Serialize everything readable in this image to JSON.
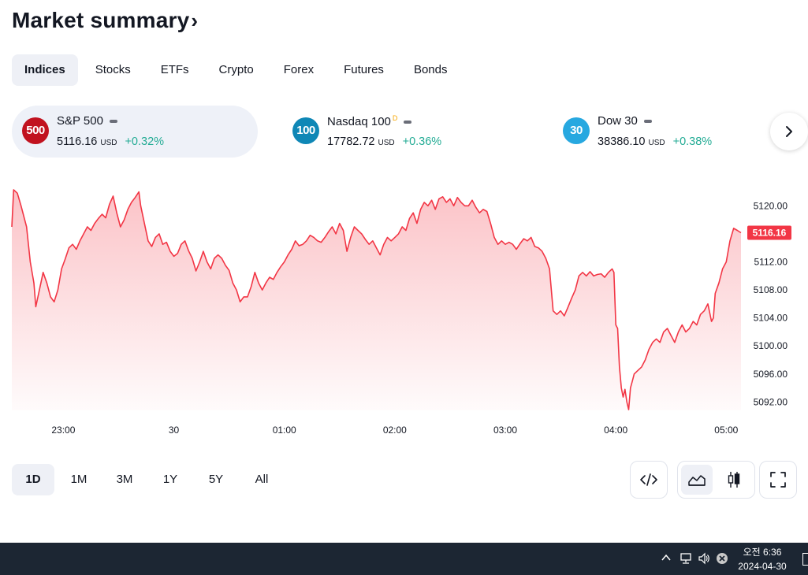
{
  "header": {
    "title": "Market summary",
    "chevron": "›"
  },
  "tabs": [
    {
      "label": "Indices",
      "active": true
    },
    {
      "label": "Stocks"
    },
    {
      "label": "ETFs"
    },
    {
      "label": "Crypto"
    },
    {
      "label": "Forex"
    },
    {
      "label": "Futures"
    },
    {
      "label": "Bonds"
    }
  ],
  "tickers": [
    {
      "badge": "500",
      "badge_color": "#c1121f",
      "name": "S&P 500",
      "flag": "",
      "value": "5116.16",
      "currency": "USD",
      "change": "+0.32%",
      "active": true
    },
    {
      "badge": "100",
      "badge_color": "#0f87b6",
      "name": "Nasdaq 100",
      "flag": "D",
      "value": "17782.72",
      "currency": "USD",
      "change": "+0.36%"
    },
    {
      "badge": "30",
      "badge_color": "#27a8e0",
      "name": "Dow 30",
      "flag": "",
      "value": "38386.10",
      "currency": "USD",
      "change": "+0.38%"
    }
  ],
  "next_icon": "chevron-right-icon",
  "chart_data": {
    "type": "area",
    "line_color": "#f23645",
    "y_ticks": [
      "5120.00",
      "5112.00",
      "5108.00",
      "5104.00",
      "5100.00",
      "5096.00",
      "5092.00"
    ],
    "y_tick_values": [
      5120,
      5112,
      5108,
      5104,
      5100,
      5096,
      5092
    ],
    "ylim": [
      5090.8,
      5122.4
    ],
    "x_ticks": [
      "23:00",
      "30",
      "01:00",
      "02:00",
      "03:00",
      "04:00",
      "05:00"
    ],
    "x_tick_values": [
      -60,
      0,
      60,
      120,
      180,
      240,
      300
    ],
    "xlim": [
      -88,
      304
    ],
    "last_value": "5116.16",
    "last_value_num": 5116.16,
    "x_unit": "minutes from 00:00 (30)",
    "points": [
      [
        -88,
        5117.0
      ],
      [
        -87,
        5122.3
      ],
      [
        -85,
        5121.8
      ],
      [
        -83,
        5120.0
      ],
      [
        -80,
        5117.0
      ],
      [
        -78,
        5112.0
      ],
      [
        -76,
        5109.0
      ],
      [
        -75,
        5105.6
      ],
      [
        -73,
        5108.0
      ],
      [
        -71,
        5110.5
      ],
      [
        -69,
        5109.0
      ],
      [
        -67,
        5107.0
      ],
      [
        -65,
        5106.3
      ],
      [
        -63,
        5108.0
      ],
      [
        -61,
        5111.0
      ],
      [
        -59,
        5112.4
      ],
      [
        -57,
        5114.0
      ],
      [
        -55,
        5114.5
      ],
      [
        -53,
        5113.8
      ],
      [
        -51,
        5115.0
      ],
      [
        -49,
        5116.0
      ],
      [
        -47,
        5117.0
      ],
      [
        -45,
        5116.5
      ],
      [
        -43,
        5117.5
      ],
      [
        -41,
        5118.2
      ],
      [
        -39,
        5118.8
      ],
      [
        -37,
        5118.3
      ],
      [
        -35,
        5120.2
      ],
      [
        -33,
        5121.4
      ],
      [
        -31,
        5119.0
      ],
      [
        -29,
        5117.0
      ],
      [
        -27,
        5118.0
      ],
      [
        -25,
        5119.5
      ],
      [
        -23,
        5120.5
      ],
      [
        -21,
        5121.2
      ],
      [
        -19,
        5122.0
      ],
      [
        -18,
        5120.0
      ],
      [
        -16,
        5117.5
      ],
      [
        -14,
        5115.0
      ],
      [
        -12,
        5114.2
      ],
      [
        -10,
        5115.5
      ],
      [
        -8,
        5116.0
      ],
      [
        -6,
        5114.5
      ],
      [
        -4,
        5114.8
      ],
      [
        -2,
        5113.5
      ],
      [
        0,
        5112.8
      ],
      [
        2,
        5113.2
      ],
      [
        4,
        5114.5
      ],
      [
        6,
        5115.0
      ],
      [
        8,
        5113.6
      ],
      [
        10,
        5112.5
      ],
      [
        12,
        5110.7
      ],
      [
        14,
        5112.0
      ],
      [
        16,
        5113.5
      ],
      [
        18,
        5112.0
      ],
      [
        20,
        5111.0
      ],
      [
        22,
        5112.5
      ],
      [
        24,
        5113.0
      ],
      [
        26,
        5112.5
      ],
      [
        28,
        5111.5
      ],
      [
        30,
        5110.8
      ],
      [
        32,
        5109.0
      ],
      [
        34,
        5108.0
      ],
      [
        36,
        5106.3
      ],
      [
        38,
        5107.0
      ],
      [
        40,
        5107.0
      ],
      [
        42,
        5108.5
      ],
      [
        44,
        5110.5
      ],
      [
        46,
        5109.0
      ],
      [
        48,
        5108.0
      ],
      [
        50,
        5109.0
      ],
      [
        52,
        5109.8
      ],
      [
        54,
        5109.5
      ],
      [
        56,
        5110.5
      ],
      [
        58,
        5111.3
      ],
      [
        60,
        5112.0
      ],
      [
        62,
        5113.0
      ],
      [
        64,
        5113.8
      ],
      [
        66,
        5115.0
      ],
      [
        68,
        5114.3
      ],
      [
        70,
        5114.5
      ],
      [
        72,
        5115.0
      ],
      [
        74,
        5115.8
      ],
      [
        76,
        5115.5
      ],
      [
        78,
        5115.0
      ],
      [
        80,
        5114.8
      ],
      [
        82,
        5115.5
      ],
      [
        84,
        5116.3
      ],
      [
        86,
        5117.0
      ],
      [
        88,
        5116.0
      ],
      [
        90,
        5117.5
      ],
      [
        92,
        5116.5
      ],
      [
        94,
        5113.5
      ],
      [
        96,
        5115.5
      ],
      [
        98,
        5117.0
      ],
      [
        100,
        5116.5
      ],
      [
        102,
        5116.0
      ],
      [
        104,
        5115.2
      ],
      [
        106,
        5114.5
      ],
      [
        108,
        5115.0
      ],
      [
        110,
        5114.0
      ],
      [
        112,
        5113.0
      ],
      [
        114,
        5114.5
      ],
      [
        116,
        5115.5
      ],
      [
        118,
        5115.0
      ],
      [
        120,
        5115.5
      ],
      [
        122,
        5116.0
      ],
      [
        124,
        5117.0
      ],
      [
        126,
        5116.5
      ],
      [
        128,
        5118.2
      ],
      [
        130,
        5119.0
      ],
      [
        132,
        5117.5
      ],
      [
        134,
        5119.5
      ],
      [
        136,
        5120.5
      ],
      [
        138,
        5120.0
      ],
      [
        140,
        5120.8
      ],
      [
        142,
        5119.5
      ],
      [
        144,
        5121.0
      ],
      [
        146,
        5121.3
      ],
      [
        148,
        5120.5
      ],
      [
        150,
        5121.0
      ],
      [
        152,
        5120.0
      ],
      [
        154,
        5121.2
      ],
      [
        156,
        5120.5
      ],
      [
        158,
        5120.0
      ],
      [
        160,
        5120.0
      ],
      [
        162,
        5120.8
      ],
      [
        164,
        5119.8
      ],
      [
        166,
        5119.0
      ],
      [
        168,
        5119.5
      ],
      [
        170,
        5119.2
      ],
      [
        172,
        5117.5
      ],
      [
        174,
        5115.5
      ],
      [
        176,
        5114.5
      ],
      [
        178,
        5115.0
      ],
      [
        180,
        5114.5
      ],
      [
        182,
        5114.8
      ],
      [
        184,
        5114.5
      ],
      [
        186,
        5113.8
      ],
      [
        188,
        5114.6
      ],
      [
        190,
        5115.3
      ],
      [
        192,
        5115.0
      ],
      [
        194,
        5115.5
      ],
      [
        196,
        5114.2
      ],
      [
        198,
        5114.0
      ],
      [
        200,
        5113.5
      ],
      [
        202,
        5112.5
      ],
      [
        204,
        5111.0
      ],
      [
        206,
        5105.0
      ],
      [
        208,
        5104.5
      ],
      [
        210,
        5105.0
      ],
      [
        212,
        5104.3
      ],
      [
        214,
        5105.5
      ],
      [
        216,
        5106.8
      ],
      [
        218,
        5108.0
      ],
      [
        220,
        5110.0
      ],
      [
        222,
        5110.5
      ],
      [
        224,
        5110.0
      ],
      [
        226,
        5110.6
      ],
      [
        228,
        5110.0
      ],
      [
        230,
        5110.2
      ],
      [
        232,
        5110.3
      ],
      [
        234,
        5109.8
      ],
      [
        236,
        5110.5
      ],
      [
        238,
        5111.0
      ],
      [
        239,
        5110.5
      ],
      [
        240,
        5103.0
      ],
      [
        241,
        5102.5
      ],
      [
        242,
        5097.0
      ],
      [
        243,
        5094.0
      ],
      [
        244,
        5092.7
      ],
      [
        245,
        5093.8
      ],
      [
        246,
        5092.0
      ],
      [
        247,
        5090.9
      ],
      [
        248,
        5094.0
      ],
      [
        249,
        5095.0
      ],
      [
        250,
        5096.0
      ],
      [
        252,
        5096.5
      ],
      [
        254,
        5097.0
      ],
      [
        256,
        5098.0
      ],
      [
        258,
        5099.5
      ],
      [
        260,
        5100.5
      ],
      [
        262,
        5101.0
      ],
      [
        264,
        5100.5
      ],
      [
        266,
        5102.0
      ],
      [
        268,
        5102.5
      ],
      [
        270,
        5101.5
      ],
      [
        272,
        5100.5
      ],
      [
        274,
        5102.0
      ],
      [
        276,
        5103.0
      ],
      [
        278,
        5102.0
      ],
      [
        280,
        5102.5
      ],
      [
        282,
        5103.5
      ],
      [
        284,
        5103.0
      ],
      [
        286,
        5104.5
      ],
      [
        288,
        5105.0
      ],
      [
        290,
        5106.0
      ],
      [
        292,
        5103.5
      ],
      [
        293,
        5104.0
      ],
      [
        294,
        5107.5
      ],
      [
        296,
        5109.0
      ],
      [
        298,
        5111.0
      ],
      [
        300,
        5112.0
      ],
      [
        302,
        5115.0
      ],
      [
        304,
        5116.8
      ],
      [
        306,
        5116.5
      ],
      [
        308,
        5116.16
      ]
    ]
  },
  "periods": [
    {
      "label": "1D",
      "active": true
    },
    {
      "label": "1M"
    },
    {
      "label": "3M"
    },
    {
      "label": "1Y"
    },
    {
      "label": "5Y"
    },
    {
      "label": "All"
    }
  ],
  "tools": {
    "embed_icon": "code-icon",
    "area_icon": "area-chart-icon",
    "candle_icon": "candlestick-icon",
    "fullscreen_icon": "fullscreen-icon"
  },
  "taskbar": {
    "time": "오전 6:36",
    "date": "2024-04-30",
    "icons": [
      "chevron-up-icon",
      "network-icon",
      "volume-icon",
      "close-circle-icon"
    ]
  }
}
